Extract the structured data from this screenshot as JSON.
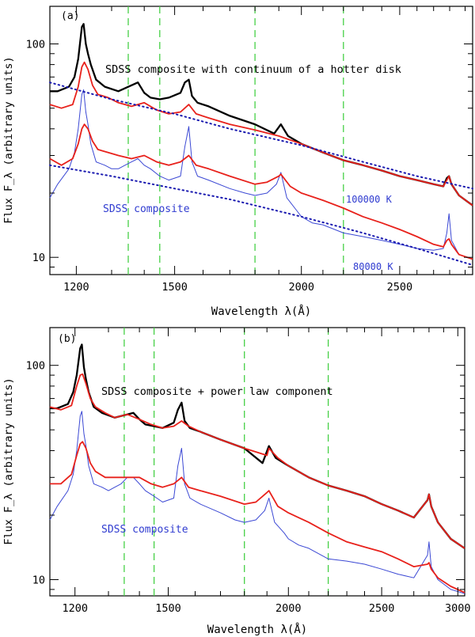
{
  "chart_data": [
    {
      "type": "line",
      "panel_label": "(a)",
      "xlabel": "Wavelength λ(Å)",
      "ylabel": "Flux F_λ (arbitrary units)",
      "xscale": "log",
      "yscale": "log",
      "xlim": [
        1130,
        2950
      ],
      "ylim": [
        8.3,
        150
      ],
      "xticks": [
        1200,
        1500,
        2000,
        2500
      ],
      "yticks": [
        10,
        100
      ],
      "vlines": [
        1350,
        1450,
        1800,
        2200
      ],
      "annotations": [
        "SDSS composite with continuum of a hotter disk",
        "SDSS composite",
        "100000 K",
        "80000 K"
      ],
      "series": [
        {
          "name": "SDSS composite with continuum of a hotter disk (black)",
          "color": "#000000",
          "x": [
            1130,
            1150,
            1180,
            1195,
            1205,
            1215,
            1220,
            1226,
            1232,
            1240,
            1255,
            1280,
            1320,
            1360,
            1380,
            1400,
            1420,
            1450,
            1480,
            1520,
            1535,
            1549,
            1560,
            1580,
            1620,
            1700,
            1800,
            1880,
            1909,
            1940,
            2000,
            2100,
            2200,
            2300,
            2400,
            2500,
            2600,
            2700,
            2760,
            2782,
            2796,
            2812,
            2860,
            2950
          ],
          "y": [
            60,
            60,
            63,
            70,
            85,
            120,
            124,
            100,
            90,
            80,
            68,
            63,
            60,
            64,
            66,
            59,
            56,
            55,
            56,
            59,
            66,
            68,
            57,
            53,
            51,
            46,
            42,
            38,
            42,
            37,
            34,
            31,
            28.5,
            27,
            25.5,
            24,
            23,
            22,
            21.5,
            23.5,
            24,
            22,
            19.5,
            17.5
          ]
        },
        {
          "name": "Model fit, upper (red)",
          "color": "#e8211b",
          "x": [
            1130,
            1160,
            1190,
            1205,
            1215,
            1222,
            1232,
            1245,
            1260,
            1290,
            1320,
            1360,
            1400,
            1440,
            1480,
            1520,
            1549,
            1575,
            1620,
            1700,
            1800,
            1900,
            2000,
            2100,
            2200,
            2300,
            2400,
            2500,
            2600,
            2700,
            2760,
            2782,
            2796,
            2812,
            2860,
            2950
          ],
          "y": [
            52,
            50,
            52,
            63,
            78,
            82,
            76,
            64,
            58,
            56,
            53,
            51,
            53,
            49,
            47,
            48,
            52,
            47,
            45,
            42,
            39.5,
            37,
            34,
            31,
            28.5,
            27,
            25.5,
            24,
            23,
            22,
            21.5,
            23,
            24,
            22,
            19.5,
            17.5
          ]
        },
        {
          "name": "SDSS composite (blue)",
          "color": "#3b48d4",
          "x": [
            1130,
            1150,
            1180,
            1195,
            1205,
            1215,
            1220,
            1226,
            1232,
            1240,
            1255,
            1280,
            1300,
            1320,
            1340,
            1360,
            1380,
            1400,
            1420,
            1450,
            1480,
            1520,
            1535,
            1549,
            1560,
            1580,
            1620,
            1700,
            1760,
            1800,
            1850,
            1890,
            1909,
            1935,
            1980,
            2000,
            2050,
            2100,
            2200,
            2300,
            2400,
            2500,
            2600,
            2700,
            2760,
            2782,
            2796,
            2812,
            2860,
            2950
          ],
          "y": [
            19,
            22,
            26,
            31,
            40,
            58,
            61,
            48,
            42,
            34,
            28,
            27,
            26,
            26,
            27,
            28,
            29,
            27,
            26,
            24,
            23,
            24,
            33,
            41,
            28,
            24,
            23,
            21,
            20,
            19.5,
            20,
            22,
            25,
            19,
            16.5,
            15.5,
            14.5,
            14.2,
            13,
            12.5,
            12,
            11.5,
            11,
            10.8,
            11,
            13,
            16,
            12,
            10.3,
            9.8
          ]
        },
        {
          "name": "Model fit, lower (red)",
          "color": "#e8211b",
          "x": [
            1130,
            1160,
            1190,
            1205,
            1215,
            1222,
            1232,
            1245,
            1260,
            1290,
            1320,
            1360,
            1400,
            1440,
            1480,
            1520,
            1549,
            1575,
            1620,
            1700,
            1800,
            1850,
            1900,
            1909,
            1950,
            2000,
            2100,
            2200,
            2300,
            2400,
            2500,
            2600,
            2700,
            2760,
            2782,
            2796,
            2812,
            2860,
            2950
          ],
          "y": [
            29,
            27,
            29,
            34,
            40,
            42,
            40,
            35,
            32,
            31,
            30,
            29,
            30,
            28,
            27,
            28,
            30,
            27,
            26,
            24,
            22,
            22.5,
            24,
            24.5,
            21.5,
            20,
            18.5,
            17,
            15.5,
            14.5,
            13.5,
            12.5,
            11.5,
            11.2,
            12,
            12.2,
            11.5,
            10.3,
            9.8
          ]
        },
        {
          "name": "100000 K disk continuum",
          "color": "#1a1ab0",
          "style": "dotted",
          "x": [
            1130,
            1300,
            1500,
            1700,
            2000,
            2300,
            2600,
            2950
          ],
          "y": [
            66,
            55,
            47,
            40,
            33.5,
            28,
            24,
            21
          ]
        },
        {
          "name": "80000 K disk continuum",
          "color": "#1a1ab0",
          "style": "dotted",
          "x": [
            1130,
            1300,
            1500,
            1700,
            2000,
            2300,
            2600,
            2950
          ],
          "y": [
            27,
            24,
            21,
            18.7,
            15.5,
            13,
            11,
            9.2
          ]
        }
      ]
    },
    {
      "type": "line",
      "panel_label": "(b)",
      "xlabel": "Wavelength λ(Å)",
      "ylabel": "Flux F_λ (arbitrary units)",
      "xscale": "log",
      "yscale": "log",
      "xlim": [
        1130,
        3050
      ],
      "ylim": [
        8.4,
        150
      ],
      "xticks": [
        1200,
        1500,
        2000,
        2500,
        3000
      ],
      "yticks": [
        10,
        100
      ],
      "vlines": [
        1350,
        1450,
        1800,
        2200
      ],
      "annotations": [
        "SDSS composite + power law component",
        "SDSS composite"
      ],
      "series": [
        {
          "name": "SDSS composite + power law component (black)",
          "color": "#000000",
          "x": [
            1130,
            1150,
            1180,
            1195,
            1205,
            1215,
            1220,
            1226,
            1232,
            1240,
            1255,
            1280,
            1320,
            1360,
            1380,
            1400,
            1420,
            1450,
            1480,
            1520,
            1535,
            1549,
            1560,
            1580,
            1620,
            1700,
            1800,
            1880,
            1909,
            1940,
            2000,
            2100,
            2200,
            2300,
            2400,
            2500,
            2600,
            2700,
            2790,
            2800,
            2815,
            2860,
            2950,
            3050
          ],
          "y": [
            63,
            63,
            66,
            75,
            90,
            120,
            125,
            98,
            86,
            75,
            64,
            60,
            57,
            59,
            60,
            56,
            53,
            52,
            51,
            54,
            62,
            67,
            55,
            51,
            49,
            45,
            41,
            35,
            42,
            37,
            34,
            30,
            27.5,
            26,
            24.5,
            22.5,
            21,
            19.5,
            23.5,
            25,
            22,
            18.5,
            15.5,
            14
          ]
        },
        {
          "name": "Model fit, upper (red)",
          "color": "#e8211b",
          "x": [
            1130,
            1160,
            1190,
            1205,
            1215,
            1222,
            1232,
            1245,
            1260,
            1290,
            1320,
            1360,
            1400,
            1440,
            1480,
            1520,
            1549,
            1575,
            1620,
            1700,
            1800,
            1900,
            1909,
            1950,
            2000,
            2100,
            2200,
            2300,
            2400,
            2500,
            2600,
            2700,
            2790,
            2800,
            2815,
            2860,
            2950,
            3050
          ],
          "y": [
            64,
            62,
            65,
            80,
            90,
            91,
            82,
            70,
            64,
            60,
            57,
            59,
            56,
            53,
            51,
            52,
            55,
            52,
            49,
            45,
            41,
            38,
            41,
            37,
            34,
            30,
            27.5,
            26,
            24.5,
            22.5,
            21,
            19.5,
            23.5,
            25,
            22,
            18.5,
            15.5,
            14
          ]
        },
        {
          "name": "SDSS composite (blue)",
          "color": "#3b48d4",
          "x": [
            1130,
            1150,
            1180,
            1195,
            1205,
            1215,
            1220,
            1226,
            1232,
            1240,
            1255,
            1280,
            1300,
            1320,
            1340,
            1360,
            1380,
            1400,
            1420,
            1450,
            1480,
            1520,
            1535,
            1549,
            1560,
            1580,
            1620,
            1700,
            1760,
            1800,
            1850,
            1890,
            1909,
            1935,
            1980,
            2000,
            2050,
            2100,
            2200,
            2300,
            2400,
            2500,
            2600,
            2700,
            2790,
            2800,
            2815,
            2860,
            2950,
            3050
          ],
          "y": [
            19,
            22,
            26,
            31,
            40,
            58,
            61,
            48,
            42,
            34,
            28,
            27,
            26,
            27,
            28,
            30,
            30,
            28,
            26,
            24.5,
            23,
            24,
            34,
            41,
            28,
            24,
            22.5,
            20.5,
            19,
            18.5,
            19,
            21,
            24,
            18.5,
            16.5,
            15.5,
            14.5,
            14,
            12.5,
            12.2,
            11.8,
            11.2,
            10.6,
            10.2,
            13,
            15,
            11.5,
            10,
            9,
            8.6
          ]
        },
        {
          "name": "Model fit, lower (red)",
          "color": "#e8211b",
          "x": [
            1130,
            1160,
            1190,
            1205,
            1215,
            1222,
            1232,
            1245,
            1260,
            1290,
            1320,
            1360,
            1400,
            1440,
            1480,
            1520,
            1549,
            1575,
            1620,
            1700,
            1800,
            1850,
            1900,
            1909,
            1950,
            2000,
            2100,
            2200,
            2300,
            2400,
            2500,
            2600,
            2700,
            2790,
            2800,
            2815,
            2860,
            2950,
            3050
          ],
          "y": [
            28,
            28,
            31,
            38,
            43,
            44,
            41,
            35,
            32,
            30,
            30,
            30,
            30,
            28,
            27,
            28,
            30,
            27,
            26,
            24.5,
            22.5,
            23,
            25.5,
            26,
            22,
            20.5,
            18.5,
            16.5,
            15,
            14.2,
            13.5,
            12.5,
            11.5,
            11.8,
            12,
            11.2,
            10.2,
            9.3,
            8.7
          ]
        }
      ]
    }
  ]
}
